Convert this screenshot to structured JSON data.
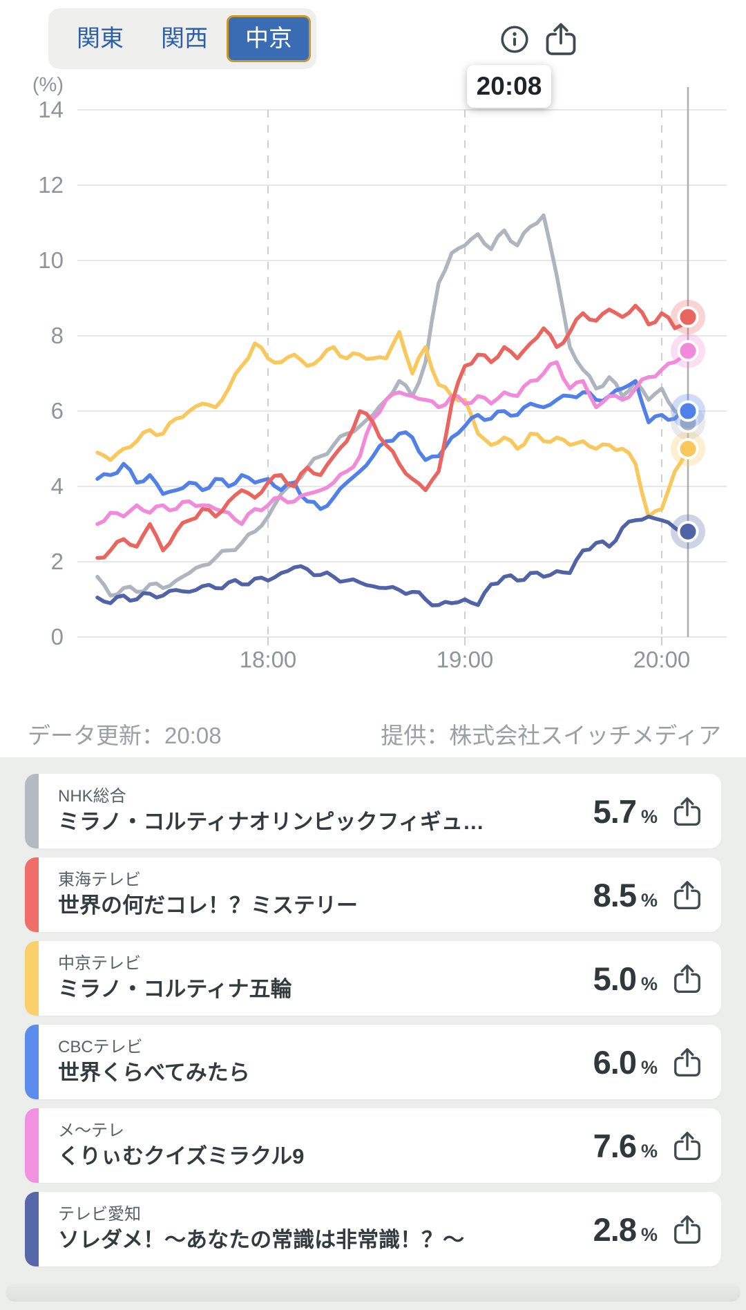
{
  "tabs": {
    "items": [
      {
        "label": "関東",
        "active": false
      },
      {
        "label": "関西",
        "active": false
      },
      {
        "label": "中京",
        "active": true
      }
    ],
    "active_bg": "#3A6CB4",
    "active_border": "#C9992F"
  },
  "header": {
    "info_icon": "info-icon",
    "share_icon": "share-icon",
    "icon_color": "#3E4B50"
  },
  "tooltip": {
    "time": "20:08"
  },
  "footer": {
    "updated": "データ更新：20:08",
    "provider": "提供：株式会社スイッチメディア"
  },
  "chart_data": {
    "type": "line",
    "title": "",
    "ylabel": "(%)",
    "ylim": [
      0,
      14
    ],
    "y_ticks": [
      0,
      2,
      4,
      6,
      8,
      10,
      12,
      14
    ],
    "x_tick_labels": [
      "18:00",
      "19:00",
      "20:00"
    ],
    "x_tick_minutes": [
      1080,
      1140,
      1200
    ],
    "t_start_min": 1028,
    "t_step_min": 4,
    "current_time": "20:08",
    "current_time_min": 1208,
    "grid": true,
    "legend_position": "list-below",
    "series": [
      {
        "name": "NHK総合",
        "color": "#AFB5BF",
        "end_value": 5.7,
        "values": [
          1.6,
          1.1,
          1.3,
          1.2,
          1.4,
          1.3,
          1.5,
          1.7,
          1.9,
          2.1,
          2.3,
          2.5,
          2.8,
          3.2,
          3.8,
          4.1,
          4.5,
          4.8,
          5.1,
          5.4,
          5.6,
          5.9,
          6.3,
          6.8,
          6.4,
          7.3,
          9.4,
          10.2,
          10.4,
          10.7,
          10.3,
          10.8,
          10.4,
          10.9,
          11.2,
          9.6,
          7.7,
          7.1,
          6.6,
          6.9,
          6.4,
          6.8,
          6.3,
          6.6,
          6.0,
          5.7
        ]
      },
      {
        "name": "東海テレビ",
        "color": "#EA655F",
        "end_value": 8.5,
        "values": [
          2.1,
          2.3,
          2.6,
          2.4,
          3.0,
          2.3,
          2.8,
          3.1,
          3.4,
          3.2,
          3.6,
          3.9,
          3.7,
          4.1,
          4.3,
          4.0,
          4.5,
          4.3,
          4.8,
          5.2,
          6.0,
          5.7,
          5.1,
          4.6,
          4.2,
          3.9,
          4.4,
          6.2,
          7.2,
          7.5,
          7.3,
          7.7,
          7.4,
          7.8,
          8.2,
          7.7,
          8.1,
          8.6,
          8.4,
          8.7,
          8.5,
          8.8,
          8.3,
          8.6,
          8.2,
          8.5
        ]
      },
      {
        "name": "中京テレビ",
        "color": "#F8C85C",
        "end_value": 5.0,
        "values": [
          4.9,
          4.7,
          5.0,
          5.2,
          5.5,
          5.4,
          5.8,
          6.0,
          6.2,
          6.1,
          6.6,
          7.2,
          7.8,
          7.4,
          7.3,
          7.5,
          7.2,
          7.4,
          7.7,
          7.4,
          7.5,
          7.4,
          7.4,
          8.1,
          7.0,
          7.7,
          6.7,
          6.4,
          6.3,
          5.4,
          5.1,
          5.3,
          5.0,
          5.4,
          5.2,
          5.3,
          5.1,
          5.2,
          5.0,
          5.1,
          5.0,
          4.6,
          3.2,
          3.4,
          4.4,
          5.0
        ]
      },
      {
        "name": "CBCテレビ",
        "color": "#5181E8",
        "end_value": 6.0,
        "values": [
          4.2,
          4.3,
          4.6,
          4.1,
          4.3,
          3.8,
          3.9,
          4.1,
          3.9,
          4.2,
          4.0,
          4.3,
          4.1,
          4.2,
          3.9,
          4.1,
          3.6,
          3.4,
          3.7,
          4.1,
          4.4,
          4.8,
          5.2,
          5.4,
          5.3,
          4.7,
          4.8,
          5.3,
          5.6,
          5.9,
          5.8,
          6.0,
          5.9,
          6.2,
          6.1,
          6.3,
          6.4,
          6.5,
          6.3,
          6.4,
          6.6,
          6.8,
          5.7,
          5.9,
          5.8,
          6.0
        ]
      },
      {
        "name": "メ〜テレ",
        "color": "#F08AD9",
        "end_value": 7.6,
        "values": [
          3.0,
          3.3,
          3.2,
          3.5,
          3.3,
          3.5,
          3.4,
          3.6,
          3.5,
          3.4,
          3.3,
          3.0,
          3.4,
          3.5,
          3.7,
          3.6,
          3.8,
          3.9,
          4.1,
          4.4,
          4.8,
          5.8,
          6.3,
          6.5,
          6.4,
          6.3,
          6.1,
          6.4,
          6.2,
          6.4,
          6.2,
          6.5,
          6.4,
          6.8,
          7.0,
          7.3,
          6.6,
          6.8,
          6.1,
          6.4,
          6.3,
          6.6,
          6.9,
          7.1,
          7.3,
          7.6
        ]
      },
      {
        "name": "テレビ愛知",
        "color": "#4F63A6",
        "end_value": 2.8,
        "values": [
          1.05,
          0.9,
          1.1,
          1.0,
          1.15,
          1.1,
          1.25,
          1.2,
          1.35,
          1.3,
          1.45,
          1.4,
          1.55,
          1.5,
          1.7,
          1.85,
          1.8,
          1.65,
          1.6,
          1.5,
          1.45,
          1.35,
          1.3,
          1.25,
          1.2,
          1.0,
          0.85,
          0.9,
          1.0,
          0.85,
          1.4,
          1.6,
          1.5,
          1.7,
          1.6,
          1.75,
          1.7,
          2.3,
          2.5,
          2.4,
          2.9,
          3.1,
          3.2,
          3.1,
          2.9,
          2.8
        ]
      }
    ]
  },
  "channels": [
    {
      "station": "NHK総合",
      "program": "ミラノ・コルティナオリンピックフィギュ…",
      "value": "5.7",
      "unit": "%",
      "color": "#B5BAC2"
    },
    {
      "station": "東海テレビ",
      "program": "世界の何だコレ！？ミステリー",
      "value": "8.5",
      "unit": "%",
      "color": "#EF6E68"
    },
    {
      "station": "中京テレビ",
      "program": "ミラノ・コルティナ五輪",
      "value": "5.0",
      "unit": "%",
      "color": "#FAD06B"
    },
    {
      "station": "CBCテレビ",
      "program": "世界くらべてみたら",
      "value": "6.0",
      "unit": "%",
      "color": "#5C8CEC"
    },
    {
      "station": "メ〜テレ",
      "program": "くりぃむクイズミラクル9",
      "value": "7.6",
      "unit": "%",
      "color": "#F291E0"
    },
    {
      "station": "テレビ愛知",
      "program": "ソレダメ！〜あなたの常識は非常識！？〜",
      "value": "2.8",
      "unit": "%",
      "color": "#5768A8"
    }
  ]
}
